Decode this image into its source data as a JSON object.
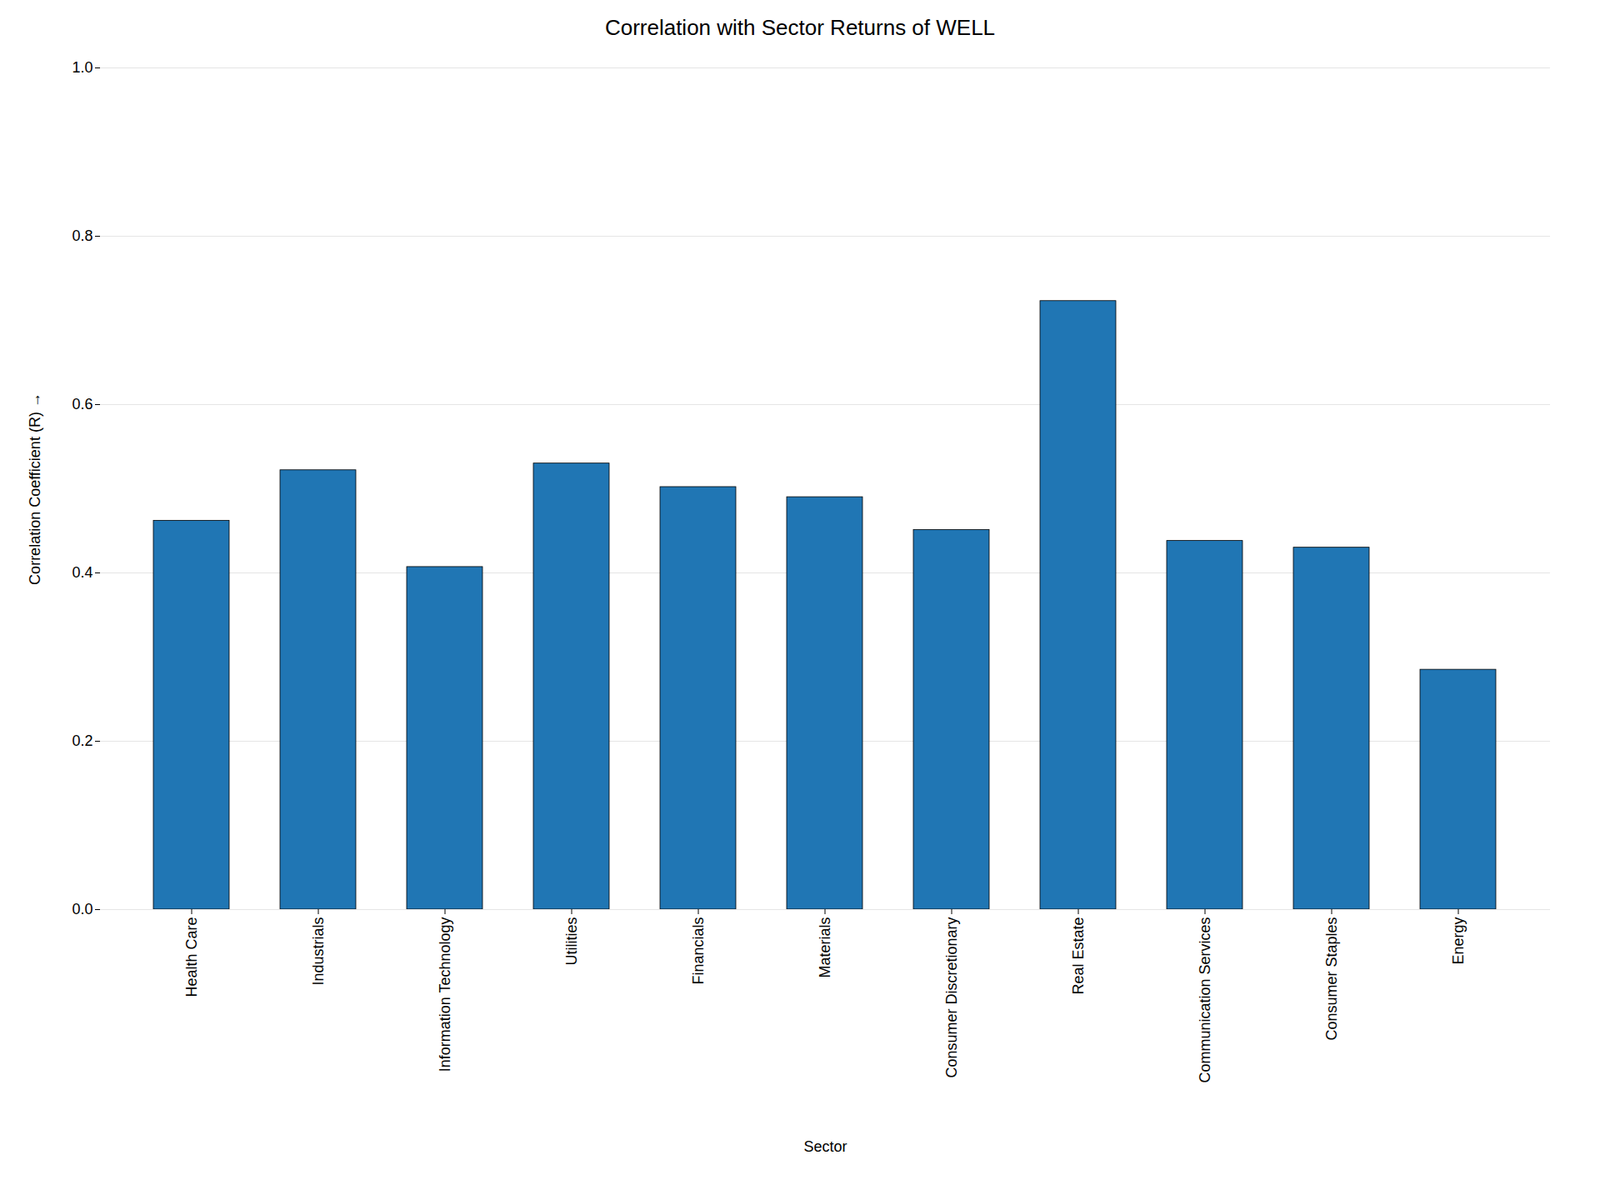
{
  "chart_data": {
    "type": "bar",
    "title": "Correlation with Sector Returns of WELL",
    "xlabel": "Sector",
    "ylabel": "Correlation Coefficient (R)",
    "categories": [
      "Health Care",
      "Industrials",
      "Information Technology",
      "Utilities",
      "Financials",
      "Materials",
      "Consumer Discretionary",
      "Real Estate",
      "Communication Services",
      "Consumer Staples",
      "Energy"
    ],
    "values": [
      0.462,
      0.522,
      0.407,
      0.53,
      0.502,
      0.49,
      0.451,
      0.723,
      0.438,
      0.43,
      0.285
    ],
    "color": "#2076b4",
    "ylim": [
      0.0,
      1.0
    ],
    "yticks": [
      {
        "value": 0.0,
        "label": "0.0"
      },
      0.2,
      0.4,
      0.6,
      0.8,
      {
        "value": 1.0,
        "label": "1.0"
      }
    ],
    "grid": true
  }
}
